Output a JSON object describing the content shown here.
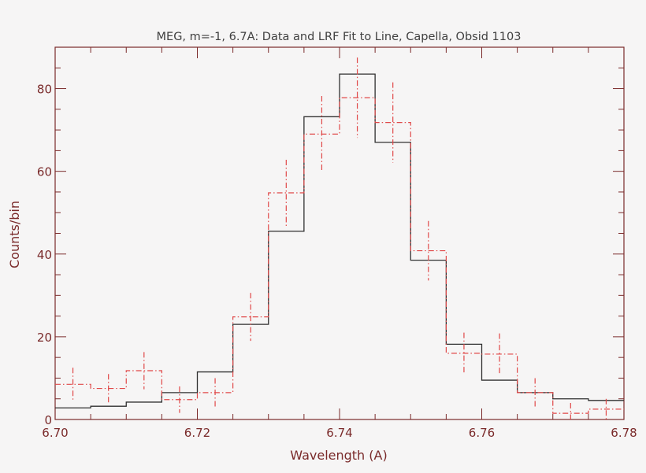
{
  "chart_data": {
    "type": "line",
    "title": "MEG, m=-1, 6.7A: Data and LRF Fit to Line, Capella, Obsid 1103",
    "xlabel": "Wavelength (A)",
    "ylabel": "Counts/bin",
    "xlim": [
      6.7,
      6.78
    ],
    "ylim": [
      0,
      90
    ],
    "x_ticks": [
      "6.70",
      "6.72",
      "6.74",
      "6.76",
      "6.78"
    ],
    "x_tick_values": [
      6.7,
      6.72,
      6.74,
      6.76,
      6.78
    ],
    "y_ticks": [
      "0",
      "20",
      "40",
      "60",
      "80"
    ],
    "y_tick_values": [
      0,
      20,
      40,
      60,
      80
    ],
    "grid": false,
    "colors": {
      "axes": "#7a2a2a",
      "data": "#e04848",
      "fit": "#303030",
      "title": "#404040",
      "background": "#f6f5f5"
    },
    "series": [
      {
        "style": "dash-dot histogram with error bars",
        "bin_centers": [
          6.7025,
          6.7075,
          6.7125,
          6.7175,
          6.7225,
          6.7275,
          6.7325,
          6.7375,
          6.7425,
          6.7475,
          6.7525,
          6.7575,
          6.7625,
          6.7675,
          6.7725,
          6.7775
        ],
        "bin_width": 0.005,
        "values": [
          8.5,
          7.5,
          11.8,
          4.8,
          6.5,
          24.8,
          54.8,
          69.0,
          77.8,
          71.8,
          40.8,
          16.0,
          15.8,
          6.5,
          1.5,
          2.5
        ],
        "errors": [
          4.0,
          3.5,
          4.5,
          3.2,
          3.5,
          5.8,
          8.0,
          9.2,
          9.7,
          9.7,
          7.2,
          5.0,
          5.0,
          3.5,
          2.5,
          2.5
        ]
      },
      {
        "style": "solid histogram",
        "bin_edges": [
          6.7,
          6.705,
          6.71,
          6.715,
          6.72,
          6.725,
          6.73,
          6.735,
          6.74,
          6.745,
          6.75,
          6.755,
          6.76,
          6.765,
          6.77,
          6.775,
          6.78
        ],
        "values": [
          2.8,
          3.2,
          4.2,
          6.5,
          11.5,
          23.0,
          45.5,
          73.2,
          83.5,
          67.0,
          38.5,
          18.2,
          9.5,
          6.5,
          5.0,
          4.6
        ]
      }
    ]
  }
}
